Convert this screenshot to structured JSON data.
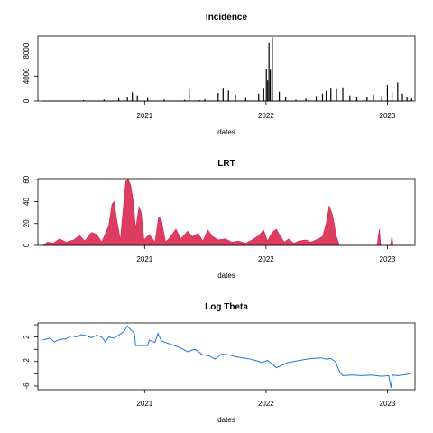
{
  "chart_data": [
    {
      "type": "bar",
      "title": "Incidence",
      "xlabel": "dates",
      "ylabel": "",
      "color": "#000000",
      "x_ticks": [
        "2021",
        "2022",
        "2023"
      ],
      "y_ticks": [
        "0",
        "4000",
        "8000"
      ],
      "y_tick_values": [
        0,
        4000,
        8000
      ],
      "ylim": [
        0,
        10400
      ],
      "xlim": [
        "2020-02-15",
        "2023-03-25"
      ],
      "grid": false,
      "series": [
        {
          "values": [
            [
              "2020-03-01",
              0
            ],
            [
              "2020-05-01",
              60
            ],
            [
              "2020-07-01",
              150
            ],
            [
              "2020-09-01",
              250
            ],
            [
              "2020-10-15",
              450
            ],
            [
              "2020-11-10",
              700
            ],
            [
              "2020-11-25",
              1400
            ],
            [
              "2020-12-10",
              900
            ],
            [
              "2021-01-10",
              500
            ],
            [
              "2021-03-01",
              250
            ],
            [
              "2021-05-01",
              200
            ],
            [
              "2021-05-15",
              1900
            ],
            [
              "2021-06-15",
              150
            ],
            [
              "2021-07-01",
              300
            ],
            [
              "2021-08-10",
              1300
            ],
            [
              "2021-08-25",
              2000
            ],
            [
              "2021-09-10",
              1700
            ],
            [
              "2021-10-01",
              1000
            ],
            [
              "2021-11-01",
              500
            ],
            [
              "2021-12-10",
              1200
            ],
            [
              "2021-12-25",
              2000
            ],
            [
              "2022-01-02",
              5200
            ],
            [
              "2022-01-06",
              3300
            ],
            [
              "2022-01-10",
              9300
            ],
            [
              "2022-01-14",
              5000
            ],
            [
              "2022-01-20",
              10200
            ],
            [
              "2022-02-10",
              1500
            ],
            [
              "2022-03-01",
              600
            ],
            [
              "2022-04-01",
              200
            ],
            [
              "2022-05-01",
              400
            ],
            [
              "2022-06-01",
              800
            ],
            [
              "2022-06-20",
              1200
            ],
            [
              "2022-07-01",
              1600
            ],
            [
              "2022-07-15",
              2000
            ],
            [
              "2022-08-01",
              1900
            ],
            [
              "2022-08-20",
              2200
            ],
            [
              "2022-09-10",
              900
            ],
            [
              "2022-10-01",
              700
            ],
            [
              "2022-11-01",
              600
            ],
            [
              "2022-11-20",
              1000
            ],
            [
              "2022-12-15",
              800
            ],
            [
              "2023-01-01",
              2600
            ],
            [
              "2023-01-15",
              1400
            ],
            [
              "2023-02-01",
              3000
            ],
            [
              "2023-02-15",
              1200
            ],
            [
              "2023-03-01",
              700
            ],
            [
              "2023-03-15",
              400
            ]
          ]
        }
      ]
    },
    {
      "type": "area",
      "title": "LRT",
      "xlabel": "dates",
      "ylabel": "",
      "color": "#d9284f",
      "x_ticks": [
        "2021",
        "2022",
        "2023"
      ],
      "y_ticks": [
        "0",
        "20",
        "40",
        "60"
      ],
      "y_tick_values": [
        0,
        20,
        40,
        60
      ],
      "ylim": [
        0,
        61
      ],
      "xlim": [
        "2020-02-15",
        "2023-03-25"
      ],
      "grid": false,
      "series": [
        {
          "values": [
            [
              "2020-03-01",
              0
            ],
            [
              "2020-03-15",
              3
            ],
            [
              "2020-04-01",
              2
            ],
            [
              "2020-04-20",
              6
            ],
            [
              "2020-05-10",
              3
            ],
            [
              "2020-06-01",
              5
            ],
            [
              "2020-06-20",
              9
            ],
            [
              "2020-07-05",
              4
            ],
            [
              "2020-07-25",
              12
            ],
            [
              "2020-08-10",
              10
            ],
            [
              "2020-08-25",
              3
            ],
            [
              "2020-09-15",
              18
            ],
            [
              "2020-09-25",
              38
            ],
            [
              "2020-10-01",
              40
            ],
            [
              "2020-10-10",
              22
            ],
            [
              "2020-10-20",
              5
            ],
            [
              "2020-11-05",
              58
            ],
            [
              "2020-11-12",
              61
            ],
            [
              "2020-11-20",
              55
            ],
            [
              "2020-11-28",
              40
            ],
            [
              "2020-12-05",
              15
            ],
            [
              "2020-12-15",
              35
            ],
            [
              "2020-12-22",
              30
            ],
            [
              "2020-12-30",
              5
            ],
            [
              "2021-01-15",
              10
            ],
            [
              "2021-02-01",
              3
            ],
            [
              "2021-02-12",
              26
            ],
            [
              "2021-02-20",
              24
            ],
            [
              "2021-03-05",
              3
            ],
            [
              "2021-03-20",
              8
            ],
            [
              "2021-04-05",
              15
            ],
            [
              "2021-04-20",
              6
            ],
            [
              "2021-05-10",
              13
            ],
            [
              "2021-05-25",
              8
            ],
            [
              "2021-06-10",
              11
            ],
            [
              "2021-06-25",
              4
            ],
            [
              "2021-07-10",
              14
            ],
            [
              "2021-07-25",
              8
            ],
            [
              "2021-08-10",
              5
            ],
            [
              "2021-09-01",
              6
            ],
            [
              "2021-09-20",
              3
            ],
            [
              "2021-10-10",
              4
            ],
            [
              "2021-11-01",
              2
            ],
            [
              "2021-11-20",
              5
            ],
            [
              "2021-12-10",
              9
            ],
            [
              "2021-12-25",
              14
            ],
            [
              "2022-01-05",
              4
            ],
            [
              "2022-01-20",
              12
            ],
            [
              "2022-02-01",
              15
            ],
            [
              "2022-02-10",
              10
            ],
            [
              "2022-02-25",
              3
            ],
            [
              "2022-03-10",
              6
            ],
            [
              "2022-03-25",
              2
            ],
            [
              "2022-04-10",
              4
            ],
            [
              "2022-05-01",
              5
            ],
            [
              "2022-05-15",
              3
            ],
            [
              "2022-06-01",
              5
            ],
            [
              "2022-06-20",
              8
            ],
            [
              "2022-07-01",
              20
            ],
            [
              "2022-07-10",
              36
            ],
            [
              "2022-07-20",
              28
            ],
            [
              "2022-08-01",
              8
            ],
            [
              "2022-08-10",
              0
            ],
            [
              "2022-12-01",
              0
            ],
            [
              "2022-12-08",
              15
            ],
            [
              "2022-12-12",
              0
            ],
            [
              "2023-01-10",
              0
            ],
            [
              "2023-01-15",
              9
            ],
            [
              "2023-01-18",
              0
            ],
            [
              "2023-03-15",
              0
            ]
          ]
        }
      ]
    },
    {
      "type": "line",
      "title": "Log Theta",
      "xlabel": "dates",
      "ylabel": "",
      "color": "#1f77d4",
      "x_ticks": [
        "2021",
        "2022",
        "2023"
      ],
      "y_ticks": [
        "-6",
        "-2",
        "2"
      ],
      "y_tick_values": [
        -6,
        -2,
        2
      ],
      "extra_y_ticks": [
        4,
        0,
        -4
      ],
      "ylim": [
        -6.6,
        4.3
      ],
      "xlim": [
        "2020-02-15",
        "2023-03-25"
      ],
      "grid": false,
      "series": [
        {
          "values": [
            [
              "2020-03-01",
              1.5
            ],
            [
              "2020-03-20",
              1.8
            ],
            [
              "2020-04-05",
              1.2
            ],
            [
              "2020-04-20",
              1.6
            ],
            [
              "2020-05-10",
              1.7
            ],
            [
              "2020-05-25",
              2.2
            ],
            [
              "2020-06-10",
              2.0
            ],
            [
              "2020-06-25",
              2.4
            ],
            [
              "2020-07-10",
              2.2
            ],
            [
              "2020-07-25",
              1.9
            ],
            [
              "2020-08-10",
              2.3
            ],
            [
              "2020-08-25",
              2.0
            ],
            [
              "2020-09-05",
              1.2
            ],
            [
              "2020-09-15",
              2.0
            ],
            [
              "2020-10-01",
              1.8
            ],
            [
              "2020-10-20",
              2.5
            ],
            [
              "2020-11-01",
              3.0
            ],
            [
              "2020-11-10",
              3.8
            ],
            [
              "2020-11-20",
              3.2
            ],
            [
              "2020-12-01",
              2.6
            ],
            [
              "2020-12-05",
              0.6
            ],
            [
              "2021-01-10",
              0.6
            ],
            [
              "2021-01-15",
              1.5
            ],
            [
              "2021-02-01",
              1.1
            ],
            [
              "2021-02-10",
              2.6
            ],
            [
              "2021-02-20",
              1.4
            ],
            [
              "2021-03-10",
              1.0
            ],
            [
              "2021-04-01",
              0.6
            ],
            [
              "2021-04-20",
              0.2
            ],
            [
              "2021-05-10",
              -0.4
            ],
            [
              "2021-06-01",
              0.0
            ],
            [
              "2021-06-25",
              -0.9
            ],
            [
              "2021-07-15",
              -1.1
            ],
            [
              "2021-08-01",
              -1.6
            ],
            [
              "2021-08-20",
              -0.8
            ],
            [
              "2021-09-10",
              -0.9
            ],
            [
              "2021-10-01",
              -1.2
            ],
            [
              "2021-10-25",
              -1.4
            ],
            [
              "2021-11-15",
              -1.6
            ],
            [
              "2021-12-05",
              -1.9
            ],
            [
              "2021-12-20",
              -2.2
            ],
            [
              "2022-01-05",
              -1.8
            ],
            [
              "2022-01-20",
              -2.4
            ],
            [
              "2022-02-01",
              -3.0
            ],
            [
              "2022-02-15",
              -2.7
            ],
            [
              "2022-03-05",
              -2.2
            ],
            [
              "2022-03-25",
              -2.0
            ],
            [
              "2022-04-15",
              -1.8
            ],
            [
              "2022-05-05",
              -1.6
            ],
            [
              "2022-05-25",
              -1.5
            ],
            [
              "2022-06-15",
              -1.4
            ],
            [
              "2022-07-01",
              -1.6
            ],
            [
              "2022-07-15",
              -1.5
            ],
            [
              "2022-07-28",
              -2.0
            ],
            [
              "2022-08-05",
              -3.0
            ],
            [
              "2022-08-12",
              -3.8
            ],
            [
              "2022-08-20",
              -4.3
            ],
            [
              "2022-09-15",
              -4.2
            ],
            [
              "2022-10-15",
              -4.3
            ],
            [
              "2022-11-15",
              -4.2
            ],
            [
              "2022-12-15",
              -4.4
            ],
            [
              "2023-01-05",
              -4.3
            ],
            [
              "2023-01-12",
              -6.3
            ],
            [
              "2023-01-16",
              -4.2
            ],
            [
              "2023-02-01",
              -4.3
            ],
            [
              "2023-02-15",
              -4.2
            ],
            [
              "2023-03-01",
              -4.1
            ],
            [
              "2023-03-15",
              -3.9
            ]
          ]
        }
      ]
    }
  ]
}
